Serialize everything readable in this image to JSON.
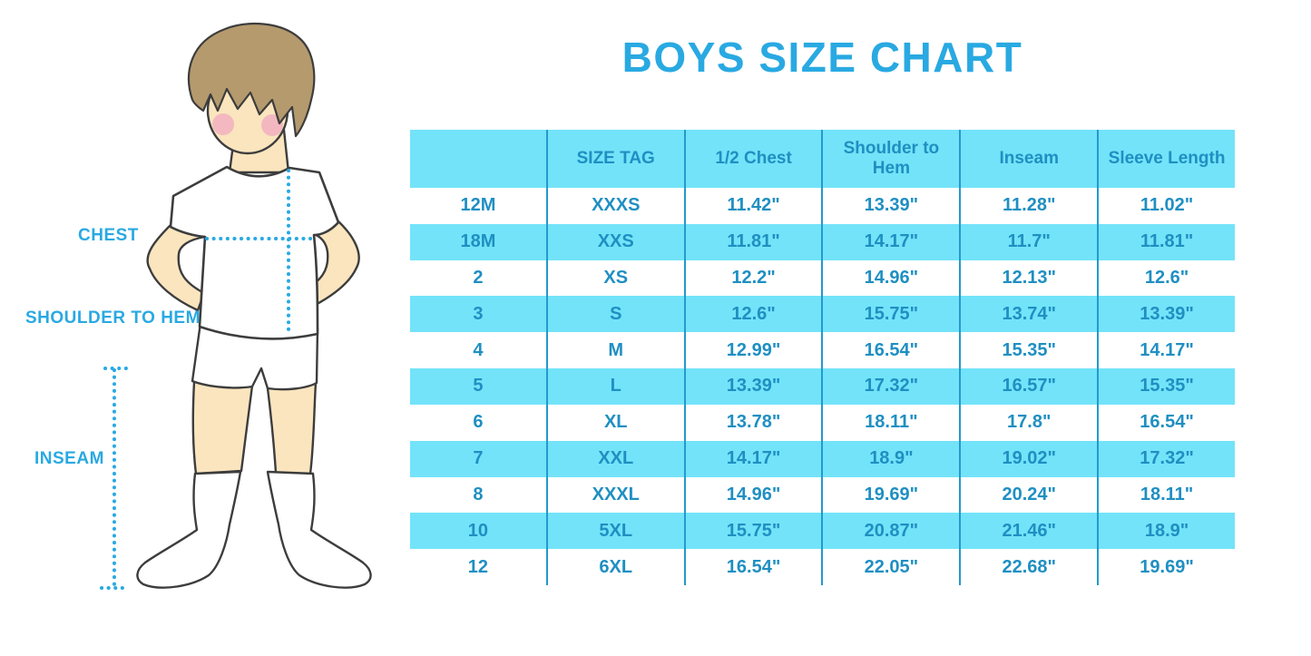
{
  "title": "BOYS SIZE CHART",
  "measurement_labels": {
    "chest": "CHEST",
    "shoulder_to_hem": "SHOULDER TO HEM",
    "inseam": "INSEAM"
  },
  "colors": {
    "accent_blue": "#29A9E2",
    "stripe_cyan": "#73E3F9",
    "table_text_blue": "#1F8FC2",
    "divider_blue": "#2499CC",
    "skin": "#FAE5BE",
    "hair_brown": "#B59A6E",
    "blush_pink": "#F2AEC0"
  },
  "chart_data": {
    "type": "table",
    "columns": [
      "",
      "SIZE TAG",
      "1/2 Chest",
      "Shoulder to Hem",
      "Inseam",
      "Sleeve Length"
    ],
    "rows": [
      [
        "12M",
        "XXXS",
        "11.42\"",
        "13.39\"",
        "11.28\"",
        "11.02\""
      ],
      [
        "18M",
        "XXS",
        "11.81\"",
        "14.17\"",
        "11.7\"",
        "11.81\""
      ],
      [
        "2",
        "XS",
        "12.2\"",
        "14.96\"",
        "12.13\"",
        "12.6\""
      ],
      [
        "3",
        "S",
        "12.6\"",
        "15.75\"",
        "13.74\"",
        "13.39\""
      ],
      [
        "4",
        "M",
        "12.99\"",
        "16.54\"",
        "15.35\"",
        "14.17\""
      ],
      [
        "5",
        "L",
        "13.39\"",
        "17.32\"",
        "16.57\"",
        "15.35\""
      ],
      [
        "6",
        "XL",
        "13.78\"",
        "18.11\"",
        "17.8\"",
        "16.54\""
      ],
      [
        "7",
        "XXL",
        "14.17\"",
        "18.9\"",
        "19.02\"",
        "17.32\""
      ],
      [
        "8",
        "XXXL",
        "14.96\"",
        "19.69\"",
        "20.24\"",
        "18.11\""
      ],
      [
        "10",
        "5XL",
        "15.75\"",
        "20.87\"",
        "21.46\"",
        "18.9\""
      ],
      [
        "12",
        "6XL",
        "16.54\"",
        "22.05\"",
        "22.68\"",
        "19.69\""
      ]
    ],
    "striped_row_background": "alternating white / cyan starting white",
    "legend_position": "none",
    "grid": "vertical dividers only"
  }
}
